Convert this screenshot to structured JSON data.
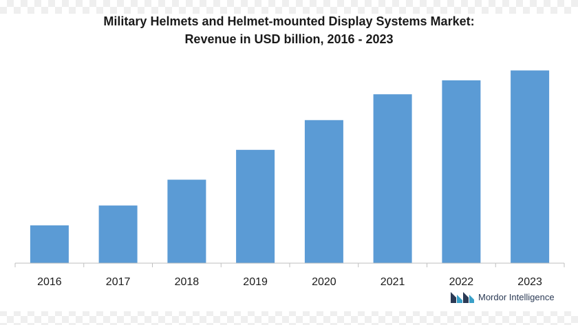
{
  "chart_data": {
    "type": "bar",
    "title": "Military Helmets and Helmet-mounted Display Systems Market:",
    "subtitle": "Revenue in USD billion, 2016 - 2023",
    "categories": [
      "2016",
      "2017",
      "2018",
      "2019",
      "2020",
      "2021",
      "2022",
      "2023"
    ],
    "values": [
      1.9,
      2.9,
      4.2,
      5.7,
      7.2,
      8.5,
      9.2,
      9.7
    ],
    "ylim": [
      0,
      10.2
    ],
    "grid": false,
    "bar_color": "#5b9bd5",
    "axis_color": "#bfbfbf"
  },
  "branding": {
    "logo_text": "Mordor Intelligence",
    "logo_icon": "mordor-logo-icon",
    "logo_colors": [
      "#2b3a55",
      "#3aa0c8"
    ]
  }
}
